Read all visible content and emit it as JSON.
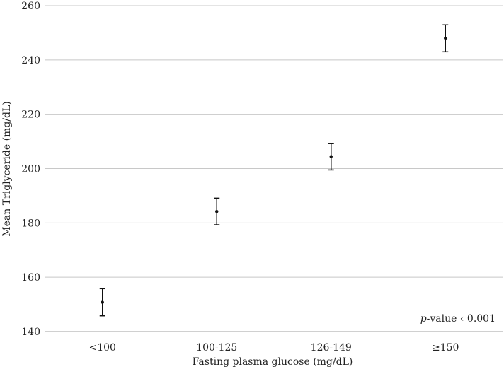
{
  "chart_data": {
    "type": "scatter",
    "categories": [
      "<100",
      "100-125",
      "126-149",
      "≥150"
    ],
    "series": [
      {
        "values": [
          150.8,
          184.2,
          204.4,
          248.0
        ],
        "error_low": [
          145.8,
          179.3,
          199.5,
          243.0
        ],
        "error_high": [
          155.8,
          189.1,
          209.3,
          252.9
        ]
      }
    ],
    "xlabel": "Fasting plasma glucose (mg/dL)",
    "ylabel": "Mean Triglyceride (mg/dL)",
    "ylim": [
      140,
      260
    ],
    "yticks": [
      "140",
      "160",
      "180",
      "200",
      "220",
      "240",
      "260"
    ],
    "grid": true,
    "legend": "none",
    "annotation": {
      "p_symbol": "p",
      "text": "-value ‹ 0.001"
    }
  }
}
